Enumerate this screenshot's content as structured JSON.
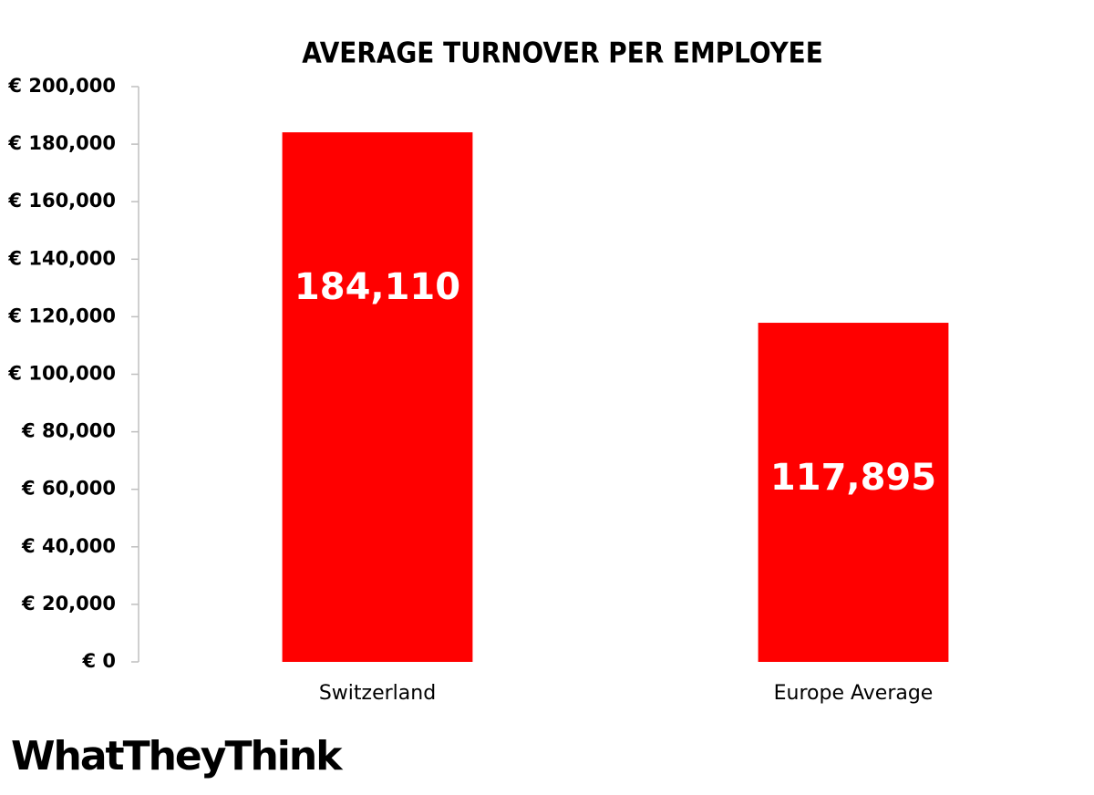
{
  "chart_data": {
    "type": "bar",
    "title": "AVERAGE TURNOVER PER EMPLOYEE",
    "categories": [
      "Switzerland",
      "Europe Average"
    ],
    "values": [
      184110,
      117895
    ],
    "value_labels": [
      "184,110",
      "117,895"
    ],
    "color": "#ff0000",
    "ylim": [
      0,
      200000
    ],
    "yticks": [
      {
        "value": 0,
        "label": "€ 0"
      },
      {
        "value": 20000,
        "label": "€ 20,000"
      },
      {
        "value": 40000,
        "label": "€ 40,000"
      },
      {
        "value": 60000,
        "label": "€ 60,000"
      },
      {
        "value": 80000,
        "label": "€ 80,000"
      },
      {
        "value": 100000,
        "label": "€ 100,000"
      },
      {
        "value": 120000,
        "label": "€ 120,000"
      },
      {
        "value": 140000,
        "label": "€ 140,000"
      },
      {
        "value": 160000,
        "label": "€ 160,000"
      },
      {
        "value": 180000,
        "label": "€ 180,000"
      },
      {
        "value": 200000,
        "label": "€ 200,000"
      }
    ],
    "grid": false
  },
  "logo": "WhatTheyThink"
}
